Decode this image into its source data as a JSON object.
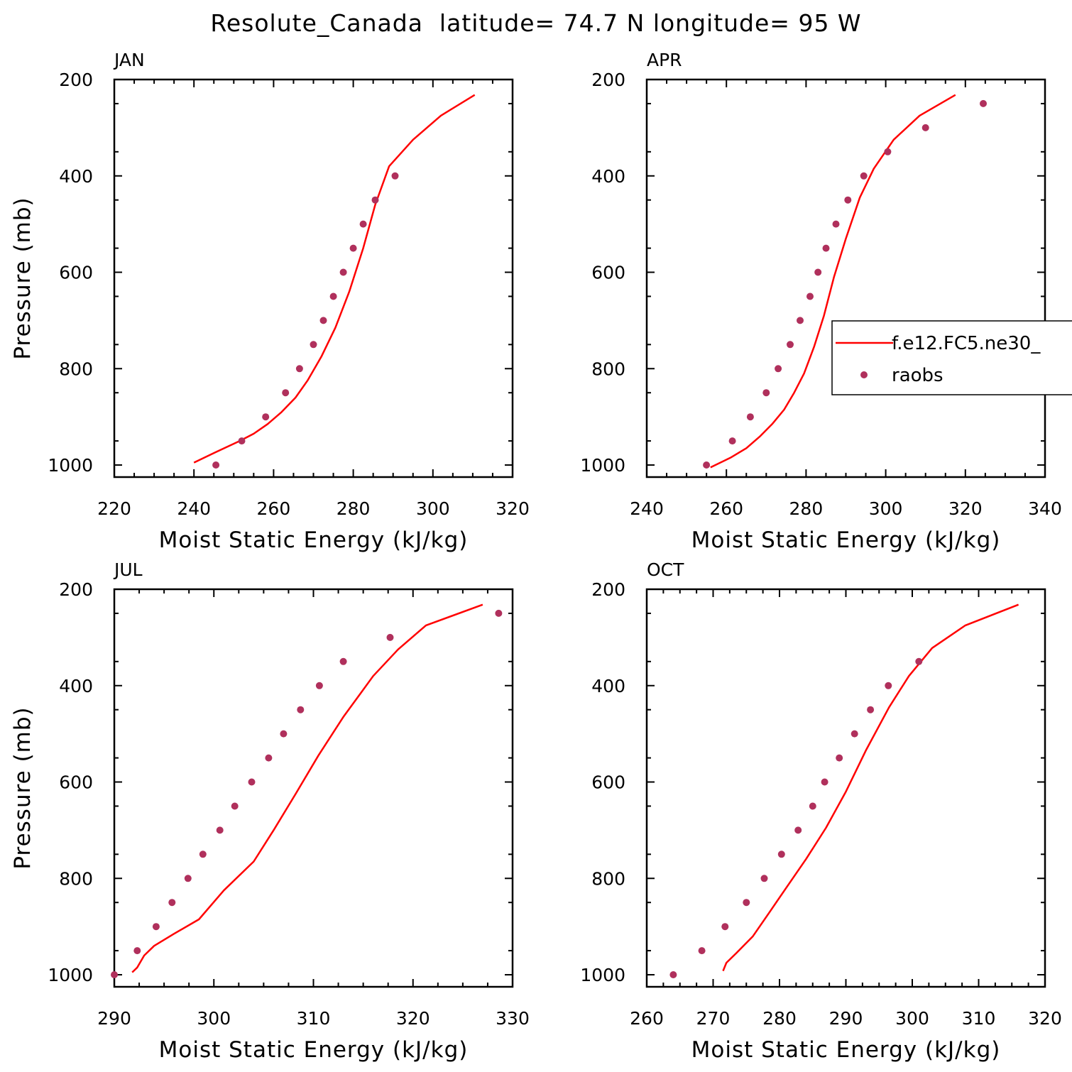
{
  "figure_title": "Resolute_Canada  latitude= 74.7 N longitude= 95 W",
  "colors": {
    "model": "#ff0000",
    "obs": "#b0305c"
  },
  "legend": {
    "entries": [
      {
        "label": "f.e12.FC5.ne30_",
        "kind": "line"
      },
      {
        "label": "raobs",
        "kind": "marker"
      }
    ]
  },
  "chart_data": [
    {
      "type": "line",
      "panel": "JAN",
      "xlabel": "Moist Static Energy (kJ/kg)",
      "ylabel": "Pressure (mb)",
      "xlim": [
        220,
        320
      ],
      "xticks": [
        220,
        240,
        260,
        280,
        300,
        320
      ],
      "ylim": [
        1025,
        200
      ],
      "yticks": [
        200,
        400,
        600,
        800,
        1000
      ],
      "series": [
        {
          "name": "f.e12.FC5.ne30_",
          "style": "line",
          "x": [
            240.0,
            245.0,
            251.5,
            255.0,
            258.5,
            262.0,
            265.5,
            268.5,
            272.0,
            275.5,
            279.0,
            282.5,
            285.5,
            289.0,
            295.0,
            302.0,
            310.5
          ],
          "y": [
            995,
            975,
            950,
            935,
            915,
            890,
            860,
            825,
            775,
            715,
            640,
            550,
            460,
            380,
            325,
            275,
            232
          ]
        },
        {
          "name": "raobs",
          "style": "marker",
          "x": [
            245.5,
            252.0,
            258.0,
            263.0,
            266.5,
            270.0,
            272.5,
            275.0,
            277.5,
            280.0,
            282.5,
            285.5,
            290.5
          ],
          "y": [
            1000,
            950,
            900,
            850,
            800,
            750,
            700,
            650,
            600,
            550,
            500,
            450,
            400
          ]
        }
      ]
    },
    {
      "type": "line",
      "panel": "APR",
      "xlabel": "Moist Static Energy (kJ/kg)",
      "ylabel": "",
      "xlim": [
        240,
        340
      ],
      "xticks": [
        240,
        260,
        280,
        300,
        320,
        340
      ],
      "ylim": [
        1025,
        200
      ],
      "yticks": [
        200,
        400,
        600,
        800,
        1000
      ],
      "series": [
        {
          "name": "f.e12.FC5.ne30_",
          "style": "line",
          "x": [
            256.0,
            261.0,
            265.0,
            268.5,
            271.5,
            274.5,
            277.0,
            279.5,
            282.0,
            284.5,
            287.0,
            290.0,
            293.5,
            297.0,
            302.0,
            308.5,
            317.5
          ],
          "y": [
            1005,
            985,
            965,
            940,
            915,
            885,
            850,
            810,
            755,
            690,
            610,
            530,
            445,
            385,
            325,
            275,
            232
          ]
        },
        {
          "name": "raobs",
          "style": "marker",
          "x": [
            255.0,
            261.5,
            266.0,
            270.0,
            273.0,
            276.0,
            278.5,
            281.0,
            283.0,
            285.0,
            287.5,
            290.5,
            294.5,
            300.5,
            310.0,
            324.5
          ],
          "y": [
            1000,
            950,
            900,
            850,
            800,
            750,
            700,
            650,
            600,
            550,
            500,
            450,
            400,
            350,
            300,
            250
          ]
        }
      ]
    },
    {
      "type": "line",
      "panel": "JUL",
      "xlabel": "Moist Static Energy (kJ/kg)",
      "ylabel": "Pressure (mb)",
      "xlim": [
        290,
        330
      ],
      "xticks": [
        290,
        300,
        310,
        320,
        330
      ],
      "ylim": [
        1025,
        200
      ],
      "yticks": [
        200,
        400,
        600,
        800,
        1000
      ],
      "series": [
        {
          "name": "f.e12.FC5.ne30_",
          "style": "line",
          "x": [
            291.8,
            292.3,
            293.0,
            294.0,
            296.0,
            298.5,
            301.0,
            304.0,
            306.0,
            308.2,
            310.5,
            313.0,
            316.0,
            318.5,
            321.3,
            327.0
          ],
          "y": [
            995,
            985,
            960,
            940,
            915,
            885,
            825,
            765,
            700,
            625,
            545,
            465,
            380,
            325,
            275,
            232
          ]
        },
        {
          "name": "raobs",
          "style": "marker",
          "x": [
            290.0,
            292.3,
            294.2,
            295.8,
            297.4,
            298.9,
            300.6,
            302.1,
            303.8,
            305.5,
            307.0,
            308.7,
            310.6,
            313.0,
            317.7,
            328.6
          ],
          "y": [
            1000,
            950,
            900,
            850,
            800,
            750,
            700,
            650,
            600,
            550,
            500,
            450,
            400,
            350,
            300,
            250
          ]
        }
      ]
    },
    {
      "type": "line",
      "panel": "OCT",
      "xlabel": "Moist Static Energy (kJ/kg)",
      "ylabel": "",
      "xlim": [
        260,
        320
      ],
      "xticks": [
        260,
        270,
        280,
        290,
        300,
        310,
        320
      ],
      "ylim": [
        1025,
        200
      ],
      "yticks": [
        200,
        400,
        600,
        800,
        1000
      ],
      "series": [
        {
          "name": "f.e12.FC5.ne30_",
          "style": "line",
          "x": [
            271.5,
            272.0,
            273.5,
            276.0,
            278.5,
            281.0,
            284.0,
            287.0,
            290.0,
            293.0,
            296.5,
            299.5,
            303.0,
            308.0,
            316.0
          ],
          "y": [
            992,
            975,
            955,
            920,
            870,
            820,
            760,
            695,
            620,
            535,
            445,
            380,
            322,
            275,
            232
          ]
        },
        {
          "name": "raobs",
          "style": "marker",
          "x": [
            264.0,
            268.3,
            271.8,
            275.0,
            277.7,
            280.3,
            282.8,
            285.0,
            286.8,
            289.0,
            291.3,
            293.7,
            296.4,
            301.0
          ],
          "y": [
            1000,
            950,
            900,
            850,
            800,
            750,
            700,
            650,
            600,
            550,
            500,
            450,
            400,
            350
          ]
        }
      ]
    }
  ]
}
